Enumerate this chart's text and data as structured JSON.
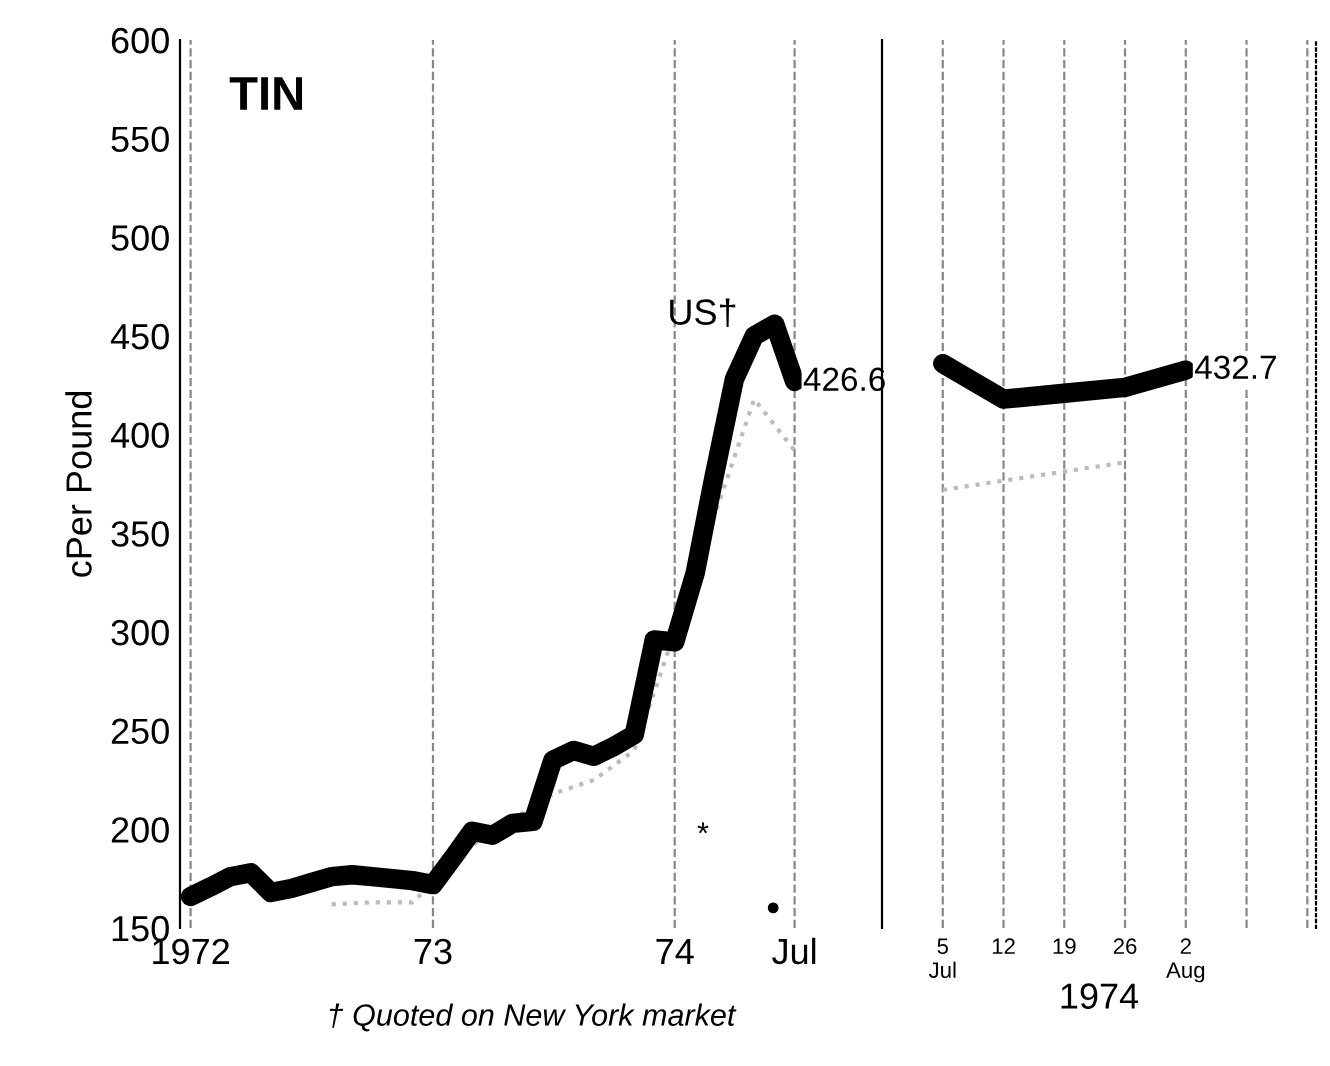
{
  "chart_data": [
    {
      "type": "line",
      "title": "TIN",
      "ylabel": "cPer Pound",
      "x": [
        "1972-01",
        "1972-02",
        "1972-03",
        "1972-04",
        "1972-05",
        "1972-06",
        "1972-07",
        "1972-08",
        "1972-09",
        "1972-10",
        "1972-11",
        "1972-12",
        "1973-01",
        "1973-02",
        "1973-03",
        "1973-04",
        "1973-05",
        "1973-06",
        "1973-07",
        "1973-08",
        "1973-09",
        "1973-10",
        "1973-11",
        "1973-12",
        "1974-01",
        "1974-02",
        "1974-03",
        "1974-04",
        "1974-05",
        "1974-06",
        "1974-07"
      ],
      "series": [
        {
          "name": null,
          "color": "#bbbbbb",
          "line_style": "dotted",
          "x": [
            "1972-08",
            "1972-10",
            "1972-12",
            "1973-03",
            "1973-07",
            "1973-09",
            "1973-11",
            "1974-05",
            "1974-07"
          ],
          "values": [
            162,
            163,
            163,
            192,
            218,
            225,
            240,
            418,
            392
          ]
        },
        {
          "name": "US†",
          "color": "#000000",
          "values": [
            166,
            171,
            176,
            178,
            168,
            170,
            173,
            176,
            177,
            176,
            175,
            174,
            172,
            186,
            199,
            197,
            203,
            204,
            235,
            240,
            237,
            242,
            248,
            296,
            295,
            330,
            378,
            428,
            450,
            456,
            427
          ]
        }
      ],
      "xlim": [
        "1971-12-16",
        "1974-11-10"
      ],
      "ylim": [
        150,
        600
      ],
      "yticks": [
        150,
        200,
        250,
        300,
        350,
        400,
        450,
        500,
        550,
        600
      ],
      "xticks": [
        {
          "value": "1972-01",
          "label": "1972"
        },
        {
          "value": "1973-01",
          "label": "73"
        },
        {
          "value": "1974-01",
          "label": "74"
        },
        {
          "value": "1974-07",
          "label": "Jul"
        }
      ],
      "grid": "x",
      "annotations": [
        {
          "text": "426.6",
          "x": "1974-07",
          "y": 426.6
        },
        "*",
        "●",
        "† Quoted on New York market"
      ]
    },
    {
      "type": "line",
      "xlabel": "1974",
      "x": [
        "1974-07-05",
        "1974-07-12",
        "1974-07-19",
        "1974-07-26",
        "1974-08-02"
      ],
      "series": [
        {
          "name": null,
          "color": "#bbbbbb",
          "line_style": "dotted",
          "x": [
            "1974-07-05",
            "1974-07-26"
          ],
          "values": [
            372,
            386
          ]
        },
        {
          "name": null,
          "color": "#000000",
          "values": [
            436,
            418,
            421,
            424,
            432.7
          ]
        }
      ],
      "xlim": [
        "1974-06-28",
        "1974-08-17"
      ],
      "ylim": [
        150,
        600
      ],
      "yticks": [
        150,
        200,
        250,
        300,
        350,
        400,
        450,
        500,
        550,
        600
      ],
      "xticks": [
        {
          "value": "1974-07-05",
          "label": "5\nJul"
        },
        {
          "value": "1974-07-12",
          "label": "12"
        },
        {
          "value": "1974-07-19",
          "label": "19"
        },
        {
          "value": "1974-07-26",
          "label": "26"
        },
        {
          "value": "1974-08-02",
          "label": "2\nAug"
        },
        {
          "value": "1974-08-09",
          "label": null
        },
        {
          "value": "1974-08-16",
          "label": null
        }
      ],
      "grid": "x",
      "tick_labels": "x",
      "annotations": [
        {
          "text": "432.7",
          "x": "1974-08-02",
          "y": 432.7
        }
      ]
    }
  ]
}
